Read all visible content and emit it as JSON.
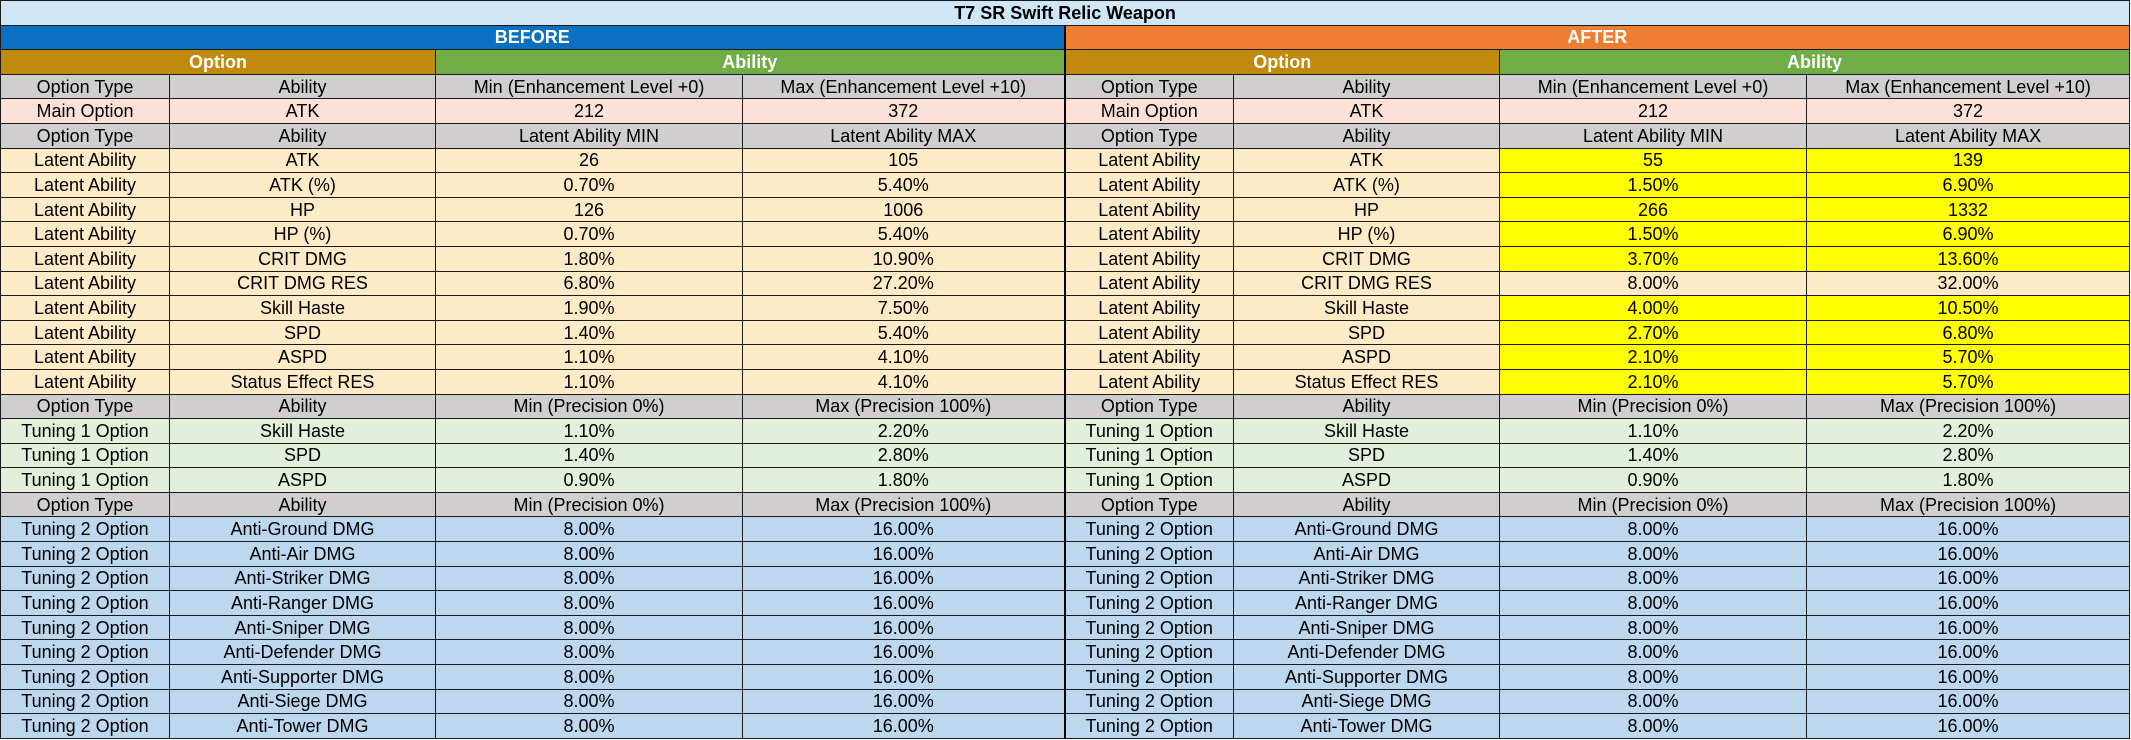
{
  "title": "T7 SR Swift Relic Weapon",
  "sections": {
    "before": "BEFORE",
    "after": "AFTER"
  },
  "group_labels": {
    "option": "Option",
    "ability": "Ability"
  },
  "highlight_color": "#ffff00",
  "main_header": [
    "Option Type",
    "Ability",
    "Min (Enhancement Level +0)",
    "Max (Enhancement Level +10)"
  ],
  "main_rows": [
    {
      "type": "Main Option",
      "ability": "ATK",
      "before_min": "212",
      "before_max": "372",
      "after_min": "212",
      "after_max": "372"
    }
  ],
  "latent_header": [
    "Option Type",
    "Ability",
    "Latent Ability MIN",
    "Latent Ability MAX"
  ],
  "latent_rows": [
    {
      "type": "Latent Ability",
      "ability": "ATK",
      "before_min": "26",
      "before_max": "105",
      "after_min": "55",
      "after_max": "139",
      "highlight": true
    },
    {
      "type": "Latent Ability",
      "ability": "ATK (%)",
      "before_min": "0.70%",
      "before_max": "5.40%",
      "after_min": "1.50%",
      "after_max": "6.90%",
      "highlight": true
    },
    {
      "type": "Latent Ability",
      "ability": "HP",
      "before_min": "126",
      "before_max": "1006",
      "after_min": "266",
      "after_max": "1332",
      "highlight": true
    },
    {
      "type": "Latent Ability",
      "ability": "HP (%)",
      "before_min": "0.70%",
      "before_max": "5.40%",
      "after_min": "1.50%",
      "after_max": "6.90%",
      "highlight": true
    },
    {
      "type": "Latent Ability",
      "ability": "CRIT DMG",
      "before_min": "1.80%",
      "before_max": "10.90%",
      "after_min": "3.70%",
      "after_max": "13.60%",
      "highlight": true
    },
    {
      "type": "Latent Ability",
      "ability": "CRIT DMG RES",
      "before_min": "6.80%",
      "before_max": "27.20%",
      "after_min": "8.00%",
      "after_max": "32.00%",
      "highlight": false
    },
    {
      "type": "Latent Ability",
      "ability": "Skill Haste",
      "before_min": "1.90%",
      "before_max": "7.50%",
      "after_min": "4.00%",
      "after_max": "10.50%",
      "highlight": true
    },
    {
      "type": "Latent Ability",
      "ability": "SPD",
      "before_min": "1.40%",
      "before_max": "5.40%",
      "after_min": "2.70%",
      "after_max": "6.80%",
      "highlight": true
    },
    {
      "type": "Latent Ability",
      "ability": "ASPD",
      "before_min": "1.10%",
      "before_max": "4.10%",
      "after_min": "2.10%",
      "after_max": "5.70%",
      "highlight": true
    },
    {
      "type": "Latent Ability",
      "ability": "Status Effect RES",
      "before_min": "1.10%",
      "before_max": "4.10%",
      "after_min": "2.10%",
      "after_max": "5.70%",
      "highlight": true
    }
  ],
  "tuning_header": [
    "Option Type",
    "Ability",
    "Min (Precision 0%)",
    "Max (Precision 100%)"
  ],
  "tuning1_rows": [
    {
      "type": "Tuning 1 Option",
      "ability": "Skill Haste",
      "before_min": "1.10%",
      "before_max": "2.20%",
      "after_min": "1.10%",
      "after_max": "2.20%"
    },
    {
      "type": "Tuning 1 Option",
      "ability": "SPD",
      "before_min": "1.40%",
      "before_max": "2.80%",
      "after_min": "1.40%",
      "after_max": "2.80%"
    },
    {
      "type": "Tuning 1 Option",
      "ability": "ASPD",
      "before_min": "0.90%",
      "before_max": "1.80%",
      "after_min": "0.90%",
      "after_max": "1.80%"
    }
  ],
  "tuning2_rows": [
    {
      "type": "Tuning 2 Option",
      "ability": "Anti-Ground DMG",
      "before_min": "8.00%",
      "before_max": "16.00%",
      "after_min": "8.00%",
      "after_max": "16.00%"
    },
    {
      "type": "Tuning 2 Option",
      "ability": "Anti-Air DMG",
      "before_min": "8.00%",
      "before_max": "16.00%",
      "after_min": "8.00%",
      "after_max": "16.00%"
    },
    {
      "type": "Tuning 2 Option",
      "ability": "Anti-Striker DMG",
      "before_min": "8.00%",
      "before_max": "16.00%",
      "after_min": "8.00%",
      "after_max": "16.00%"
    },
    {
      "type": "Tuning 2 Option",
      "ability": "Anti-Ranger DMG",
      "before_min": "8.00%",
      "before_max": "16.00%",
      "after_min": "8.00%",
      "after_max": "16.00%"
    },
    {
      "type": "Tuning 2 Option",
      "ability": "Anti-Sniper DMG",
      "before_min": "8.00%",
      "before_max": "16.00%",
      "after_min": "8.00%",
      "after_max": "16.00%"
    },
    {
      "type": "Tuning 2 Option",
      "ability": "Anti-Defender DMG",
      "before_min": "8.00%",
      "before_max": "16.00%",
      "after_min": "8.00%",
      "after_max": "16.00%"
    },
    {
      "type": "Tuning 2 Option",
      "ability": "Anti-Supporter DMG",
      "before_min": "8.00%",
      "before_max": "16.00%",
      "after_min": "8.00%",
      "after_max": "16.00%"
    },
    {
      "type": "Tuning 2 Option",
      "ability": "Anti-Siege DMG",
      "before_min": "8.00%",
      "before_max": "16.00%",
      "after_min": "8.00%",
      "after_max": "16.00%"
    },
    {
      "type": "Tuning 2 Option",
      "ability": "Anti-Tower DMG",
      "before_min": "8.00%",
      "before_max": "16.00%",
      "after_min": "8.00%",
      "after_max": "16.00%"
    }
  ]
}
